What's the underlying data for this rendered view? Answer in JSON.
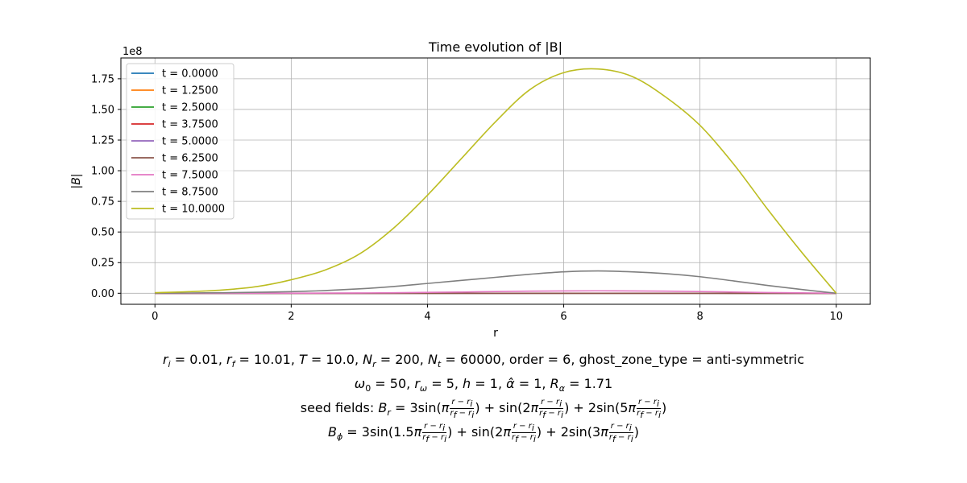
{
  "chart_data": {
    "type": "line",
    "title": "Time evolution of |B|",
    "xlabel": "r",
    "ylabel": "|B|",
    "y_offset_label": "1e8",
    "xlim": [
      -0.5,
      10.5
    ],
    "ylim": [
      -0.09,
      1.92
    ],
    "y_scale_factor": 100000000,
    "x_ticks": [
      0,
      2,
      4,
      6,
      8,
      10
    ],
    "x_tick_labels": [
      "0",
      "2",
      "4",
      "6",
      "8",
      "10"
    ],
    "y_ticks": [
      0.0,
      0.25,
      0.5,
      0.75,
      1.0,
      1.25,
      1.5,
      1.75
    ],
    "y_tick_labels": [
      "0.00",
      "0.25",
      "0.50",
      "0.75",
      "1.00",
      "1.25",
      "1.50",
      "1.75"
    ],
    "grid": true,
    "legend_position": "upper-left",
    "x": [
      0,
      0.5,
      1,
      1.5,
      2,
      2.5,
      3,
      3.5,
      4,
      4.5,
      5,
      5.5,
      6,
      6.5,
      7,
      7.5,
      8,
      8.5,
      9,
      9.5,
      10
    ],
    "series": [
      {
        "name": "t = 0.0000",
        "color": "#1f77b4",
        "values": [
          0,
          0,
          0,
          0,
          0,
          0,
          0,
          0,
          0,
          0,
          0,
          0,
          0,
          0,
          0,
          0,
          0,
          0,
          0,
          0,
          0
        ]
      },
      {
        "name": "t = 1.2500",
        "color": "#ff7f0e",
        "values": [
          0,
          0,
          0,
          0,
          0,
          0,
          0,
          0,
          0,
          0,
          0,
          0,
          0,
          0,
          0,
          0,
          0,
          0,
          0,
          0,
          0
        ]
      },
      {
        "name": "t = 2.5000",
        "color": "#2ca02c",
        "values": [
          0,
          0,
          0,
          0,
          0,
          0,
          0,
          0,
          0,
          0,
          0,
          0,
          0,
          0,
          0,
          0,
          0,
          0,
          0,
          0,
          0
        ]
      },
      {
        "name": "t = 3.7500",
        "color": "#d62728",
        "values": [
          0,
          0,
          0,
          0,
          0,
          0,
          0,
          0,
          0,
          0,
          0,
          0,
          0,
          0,
          0,
          0,
          0,
          0,
          0,
          0,
          0
        ]
      },
      {
        "name": "t = 5.0000",
        "color": "#9467bd",
        "values": [
          0,
          0,
          0,
          0,
          0,
          0,
          0,
          0,
          0,
          0,
          0,
          0,
          0,
          0,
          0,
          0,
          0,
          0,
          0,
          0,
          0
        ]
      },
      {
        "name": "t = 6.2500",
        "color": "#8c564b",
        "values": [
          0,
          0,
          0,
          0,
          0,
          0,
          0.0001,
          0.0002,
          0.0002,
          0.0003,
          0.0003,
          0.0004,
          0.0004,
          0.0004,
          0.0004,
          0.0003,
          0.0003,
          0.0002,
          0.0001,
          0.0001,
          0
        ]
      },
      {
        "name": "t = 7.5000",
        "color": "#e377c2",
        "values": [
          0,
          0.0001,
          0.0002,
          0.0004,
          0.0008,
          0.0013,
          0.0025,
          0.004,
          0.0075,
          0.01,
          0.014,
          0.017,
          0.019,
          0.02,
          0.019,
          0.017,
          0.014,
          0.01,
          0.006,
          0.003,
          0
        ]
      },
      {
        "name": "t = 8.7500",
        "color": "#7f7f7f",
        "values": [
          0.001,
          0.002,
          0.004,
          0.008,
          0.013,
          0.022,
          0.036,
          0.055,
          0.08,
          0.105,
          0.13,
          0.155,
          0.175,
          0.182,
          0.175,
          0.16,
          0.135,
          0.1,
          0.063,
          0.03,
          0
        ]
      },
      {
        "name": "t = 10.0000",
        "color": "#bcbd22",
        "values": [
          0.005,
          0.013,
          0.027,
          0.055,
          0.11,
          0.19,
          0.32,
          0.53,
          0.8,
          1.1,
          1.4,
          1.66,
          1.8,
          1.83,
          1.77,
          1.6,
          1.37,
          1.05,
          0.68,
          0.33,
          0
        ]
      }
    ]
  },
  "caption": {
    "line1_tail": " = 0.01, ",
    "line1_rf": " = 10.01, ",
    "line1_T": " = 10.0, ",
    "line1_Nr": " = 200, ",
    "line1_Nt": " = 60000, order = 6, ghost_zone_type = anti-symmetric",
    "line2": "ω₀ = 50, r_ω = 5, h = 1, α̂ = 1, R_α = 1.71",
    "line3_prefix": "seed fields: ",
    "line4_prefix": ""
  }
}
